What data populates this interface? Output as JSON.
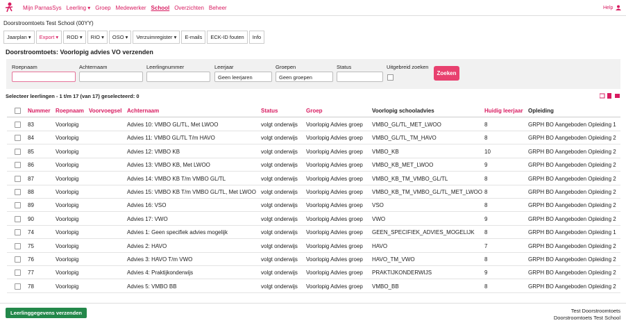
{
  "nav": {
    "items": [
      "Mijn ParnasSys",
      "Leerling",
      "Groep",
      "Medewerker",
      "School",
      "Overzichten",
      "Beheer"
    ],
    "help": "Help"
  },
  "school": "Doorstroomtoets Test School (00YY)",
  "tabs": [
    "Jaarplan",
    "Export",
    "ROD",
    "RIO",
    "OSO",
    "Verzuimregister",
    "E-mails",
    "ECK-ID fouten",
    "Info"
  ],
  "page_title": "Doorstroomtoets: Voorlopig advies VO verzenden",
  "filters": {
    "roepnaam": "Roepnaam",
    "achternaam": "Achternaam",
    "leerlingnummer": "Leerlingnummer",
    "leerjaar": "Leerjaar",
    "leerjaar_value": "Geen leerjaren",
    "groepen": "Groepen",
    "groepen_value": "Geen groepen",
    "status": "Status",
    "uitgebreid": "Uitgebreid zoeken",
    "button": "Zoeken"
  },
  "selection": "Selecteer leerlingen - 1 t/m 17 (van 17) geselecteerd: 0",
  "table": {
    "columns": [
      "Nummer",
      "Roepnaam",
      "Voorvoegsel",
      "Achternaam",
      "Status",
      "Groep",
      "Voorlopig schooladvies",
      "Huidig leerjaar",
      "Opleiding"
    ],
    "rows": [
      {
        "nummer": 83,
        "roepnaam": "Voorlopig",
        "achternaam": "Advies 10: VMBO GL/TL, Met LWOO",
        "status": "volgt onderwijs",
        "groep": "Voorlopig Advies groep",
        "advies": "VMBO_GL/TL_MET_LWOO",
        "leerjaar": 8,
        "opleiding": "GRPH BO Aangeboden Opleiding 1"
      },
      {
        "nummer": 84,
        "roepnaam": "Voorlopig",
        "achternaam": "Advies 11: VMBO GL/TL T/m HAVO",
        "status": "volgt onderwijs",
        "groep": "Voorlopig Advies groep",
        "advies": "VMBO_GL/TL_TM_HAVO",
        "leerjaar": 8,
        "opleiding": "GRPH BO Aangeboden Opleiding 2"
      },
      {
        "nummer": 85,
        "roepnaam": "Voorlopig",
        "achternaam": "Advies 12: VMBO KB",
        "status": "volgt onderwijs",
        "groep": "Voorlopig Advies groep",
        "advies": "VMBO_KB",
        "leerjaar": 10,
        "opleiding": "GRPH BO Aangeboden Opleiding 2"
      },
      {
        "nummer": 86,
        "roepnaam": "Voorlopig",
        "achternaam": "Advies 13: VMBO KB, Met LWOO",
        "status": "volgt onderwijs",
        "groep": "Voorlopig Advies groep",
        "advies": "VMBO_KB_MET_LWOO",
        "leerjaar": 9,
        "opleiding": "GRPH BO Aangeboden Opleiding 2"
      },
      {
        "nummer": 87,
        "roepnaam": "Voorlopig",
        "achternaam": "Advies 14: VMBO KB T/m VMBO GL/TL",
        "status": "volgt onderwijs",
        "groep": "Voorlopig Advies groep",
        "advies": "VMBO_KB_TM_VMBO_GL/TL",
        "leerjaar": 8,
        "opleiding": "GRPH BO Aangeboden Opleiding 2"
      },
      {
        "nummer": 88,
        "roepnaam": "Voorlopig",
        "achternaam": "Advies 15: VMBO KB T/m VMBO GL/TL, Met LWOO",
        "status": "volgt onderwijs",
        "groep": "Voorlopig Advies groep",
        "advies": "VMBO_KB_TM_VMBO_GL/TL_MET_LWOO",
        "leerjaar": 8,
        "opleiding": "GRPH BO Aangeboden Opleiding 2"
      },
      {
        "nummer": 89,
        "roepnaam": "Voorlopig",
        "achternaam": "Advies 16: VSO",
        "status": "volgt onderwijs",
        "groep": "Voorlopig Advies groep",
        "advies": "VSO",
        "leerjaar": 8,
        "opleiding": "GRPH BO Aangeboden Opleiding 2"
      },
      {
        "nummer": 90,
        "roepnaam": "Voorlopig",
        "achternaam": "Advies 17: VWO",
        "status": "volgt onderwijs",
        "groep": "Voorlopig Advies groep",
        "advies": "VWO",
        "leerjaar": 9,
        "opleiding": "GRPH BO Aangeboden Opleiding 2"
      },
      {
        "nummer": 74,
        "roepnaam": "Voorlopig",
        "achternaam": "Advies 1: Geen specifiek advies mogelijk",
        "status": "volgt onderwijs",
        "groep": "Voorlopig Advies groep",
        "advies": "GEEN_SPECIFIEK_ADVIES_MOGELIJK",
        "leerjaar": 8,
        "opleiding": "GRPH BO Aangeboden Opleiding 1"
      },
      {
        "nummer": 75,
        "roepnaam": "Voorlopig",
        "achternaam": "Advies 2: HAVO",
        "status": "volgt onderwijs",
        "groep": "Voorlopig Advies groep",
        "advies": "HAVO",
        "leerjaar": 7,
        "opleiding": "GRPH BO Aangeboden Opleiding 2"
      },
      {
        "nummer": 76,
        "roepnaam": "Voorlopig",
        "achternaam": "Advies 3: HAVO T/m VWO",
        "status": "volgt onderwijs",
        "groep": "Voorlopig Advies groep",
        "advies": "HAVO_TM_VWO",
        "leerjaar": 8,
        "opleiding": "GRPH BO Aangeboden Opleiding 2"
      },
      {
        "nummer": 77,
        "roepnaam": "Voorlopig",
        "achternaam": "Advies 4: Praktijkonderwijs",
        "status": "volgt onderwijs",
        "groep": "Voorlopig Advies groep",
        "advies": "PRAKTIJKONDERWIJS",
        "leerjaar": 9,
        "opleiding": "GRPH BO Aangeboden Opleiding 2"
      },
      {
        "nummer": 78,
        "roepnaam": "Voorlopig",
        "achternaam": "Advies 5: VMBO BB",
        "status": "volgt onderwijs",
        "groep": "Voorlopig Advies groep",
        "advies": "VMBO_BB",
        "leerjaar": 8,
        "opleiding": "GRPH BO Aangeboden Opleiding 2"
      }
    ]
  },
  "footer": {
    "button": "Leerlinggegevens verzenden",
    "user": "Test Doorstroomtoets",
    "school": "Doorstroomtoets Test School"
  }
}
